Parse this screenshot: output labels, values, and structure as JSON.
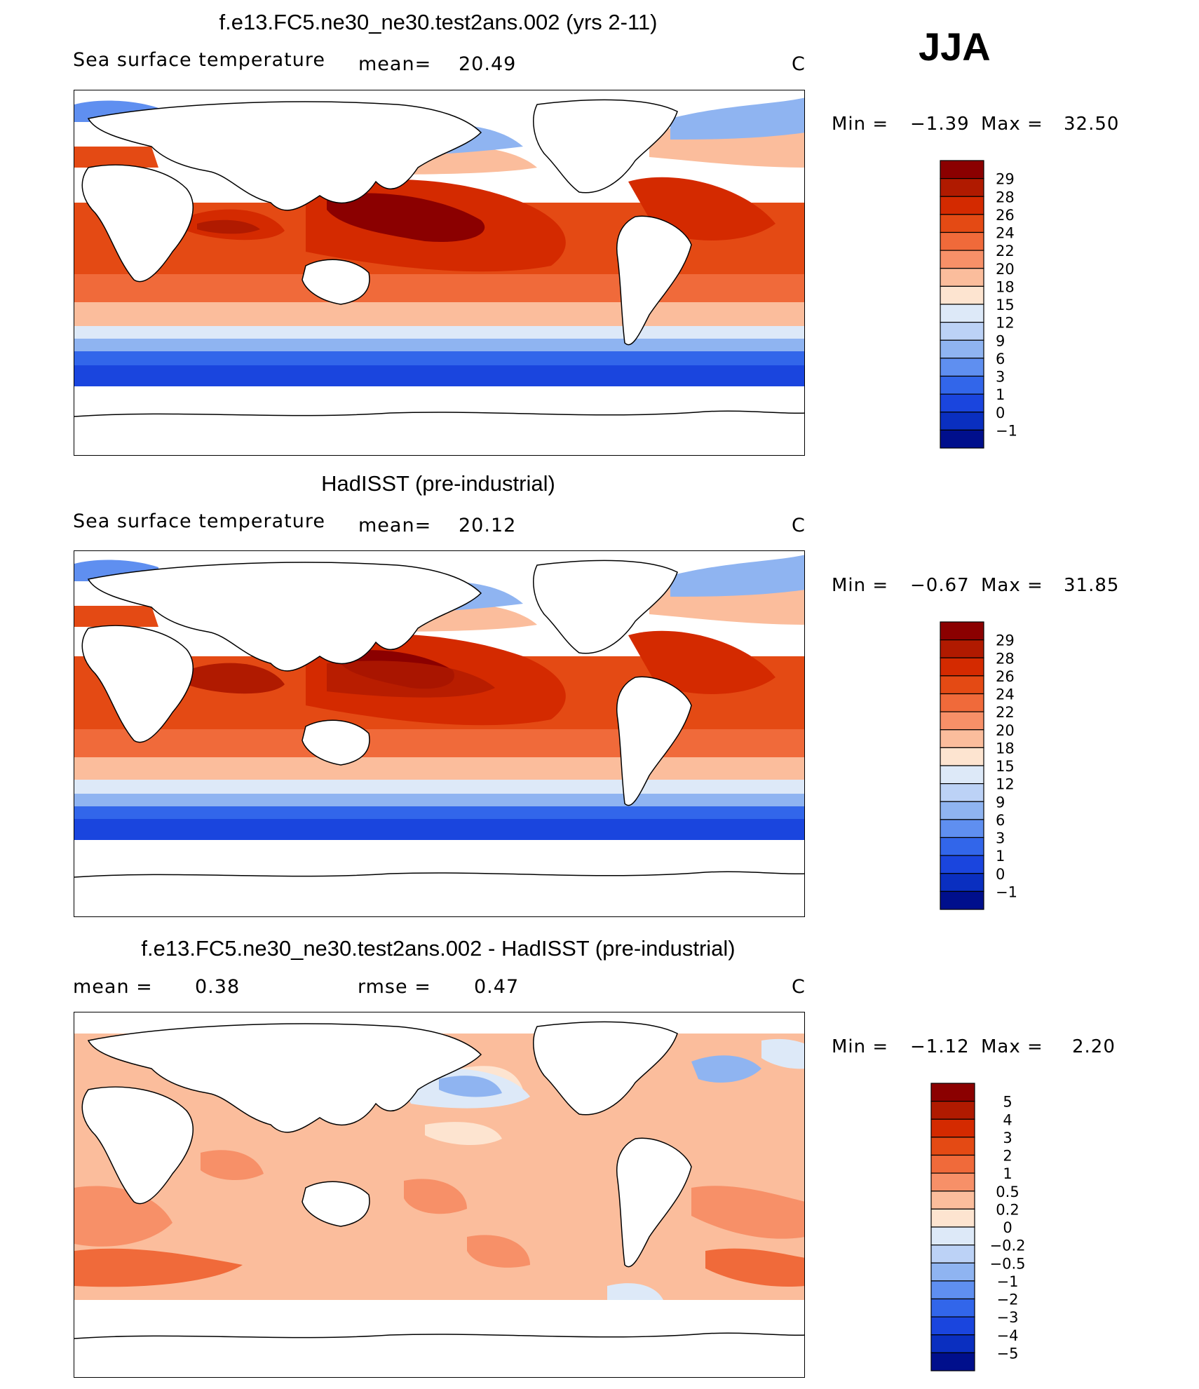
{
  "season": "JJA",
  "panels": [
    {
      "title": "f.e13.FC5.ne30_ne30.test2ans.002 (yrs 2-11)",
      "left_label": "Sea surface temperature",
      "stat1_label": "mean=",
      "stat1_value": "20.49",
      "stat2_label": "",
      "stat2_value": "",
      "units": "C",
      "min_label": "Min =",
      "min_value": "−1.39",
      "max_label": "Max =",
      "max_value": "32.50"
    },
    {
      "title": "HadISST (pre-industrial)",
      "left_label": "Sea surface temperature",
      "stat1_label": "mean=",
      "stat1_value": "20.12",
      "stat2_label": "",
      "stat2_value": "",
      "units": "C",
      "min_label": "Min =",
      "min_value": "−0.67",
      "max_label": "Max =",
      "max_value": "31.85"
    },
    {
      "title": "f.e13.FC5.ne30_ne30.test2ans.002 - HadISST (pre-industrial)",
      "left_label": "",
      "stat1_label": "mean =",
      "stat1_value": "0.38",
      "stat2_label": "rmse =",
      "stat2_value": "0.47",
      "units": "C",
      "min_label": "Min =",
      "min_value": "−1.12",
      "max_label": "Max =",
      "max_value": "2.20"
    }
  ],
  "colorbars": {
    "sst": {
      "labels": [
        "29",
        "28",
        "26",
        "24",
        "22",
        "20",
        "18",
        "15",
        "12",
        "9",
        "6",
        "3",
        "1",
        "0",
        "−1"
      ],
      "colors": [
        "#8b0000",
        "#b01a00",
        "#d42a00",
        "#e44a14",
        "#f06a3a",
        "#f79068",
        "#fbbd9c",
        "#fde4d0",
        "#dde9f8",
        "#bcd2f6",
        "#8fb4f1",
        "#5f8ff0",
        "#3266ea",
        "#1a45de",
        "#0a2fc0",
        "#000f8c"
      ]
    },
    "diff": {
      "labels": [
        "5",
        "4",
        "3",
        "2",
        "1",
        "0.5",
        "0.2",
        "0",
        "−0.2",
        "−0.5",
        "−1",
        "−2",
        "−3",
        "−4",
        "−5"
      ],
      "colors": [
        "#8b0000",
        "#b01a00",
        "#d42a00",
        "#e44a14",
        "#f06a3a",
        "#f79068",
        "#fbbd9c",
        "#fde4d0",
        "#dde9f8",
        "#bcd2f6",
        "#8fb4f1",
        "#5f8ff0",
        "#3266ea",
        "#1a45de",
        "#0a2fc0",
        "#000f8c"
      ]
    }
  }
}
